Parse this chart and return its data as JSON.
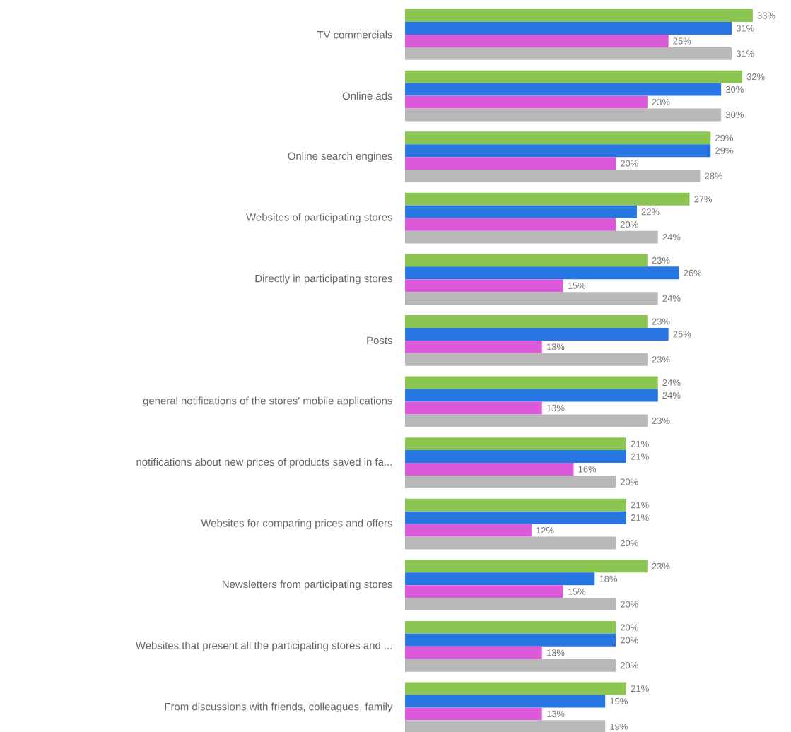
{
  "chart_data": {
    "type": "bar",
    "orientation": "horizontal",
    "categories": [
      "TV commercials",
      "Online ads",
      "Online search engines",
      "Websites of participating stores",
      "Directly in participating stores",
      "Posts",
      "general notifications of the stores' mobile applications",
      "notifications about new prices of products saved in fa...",
      "Websites for comparing prices and offers",
      "Newsletters from participating stores",
      "Websites that present all the participating stores and ...",
      "From discussions with friends, colleagues, family"
    ],
    "series": [
      {
        "color": "#8bc653",
        "values": [
          33,
          32,
          29,
          27,
          23,
          23,
          24,
          21,
          21,
          23,
          20,
          21
        ],
        "value_labels": [
          "33%",
          "32%",
          "29%",
          "27%",
          "23%",
          "23%",
          "24%",
          "21%",
          "21%",
          "23%",
          "20%",
          "21%"
        ]
      },
      {
        "color": "#2876e1",
        "values": [
          31,
          30,
          29,
          22,
          26,
          25,
          24,
          21,
          21,
          18,
          20,
          19
        ],
        "value_labels": [
          "31%",
          "30%",
          "29%",
          "22%",
          "26%",
          "25%",
          "24%",
          "21%",
          "21%",
          "18%",
          "20%",
          "19%"
        ]
      },
      {
        "color": "#dc5ad9",
        "values": [
          25,
          23,
          20,
          20,
          15,
          13,
          13,
          16,
          12,
          15,
          13,
          13
        ],
        "value_labels": [
          "25%",
          "23%",
          "20%",
          "20%",
          "15%",
          "13%",
          "13%",
          "16%",
          "12%",
          "15%",
          "13%",
          "13%"
        ]
      },
      {
        "color": "#b8b8b8",
        "values": [
          31,
          30,
          28,
          24,
          24,
          23,
          23,
          20,
          20,
          20,
          20,
          19
        ],
        "value_labels": [
          "31%",
          "30%",
          "28%",
          "24%",
          "24%",
          "23%",
          "23%",
          "20%",
          "20%",
          "20%",
          "20%",
          "19%"
        ]
      }
    ]
  }
}
